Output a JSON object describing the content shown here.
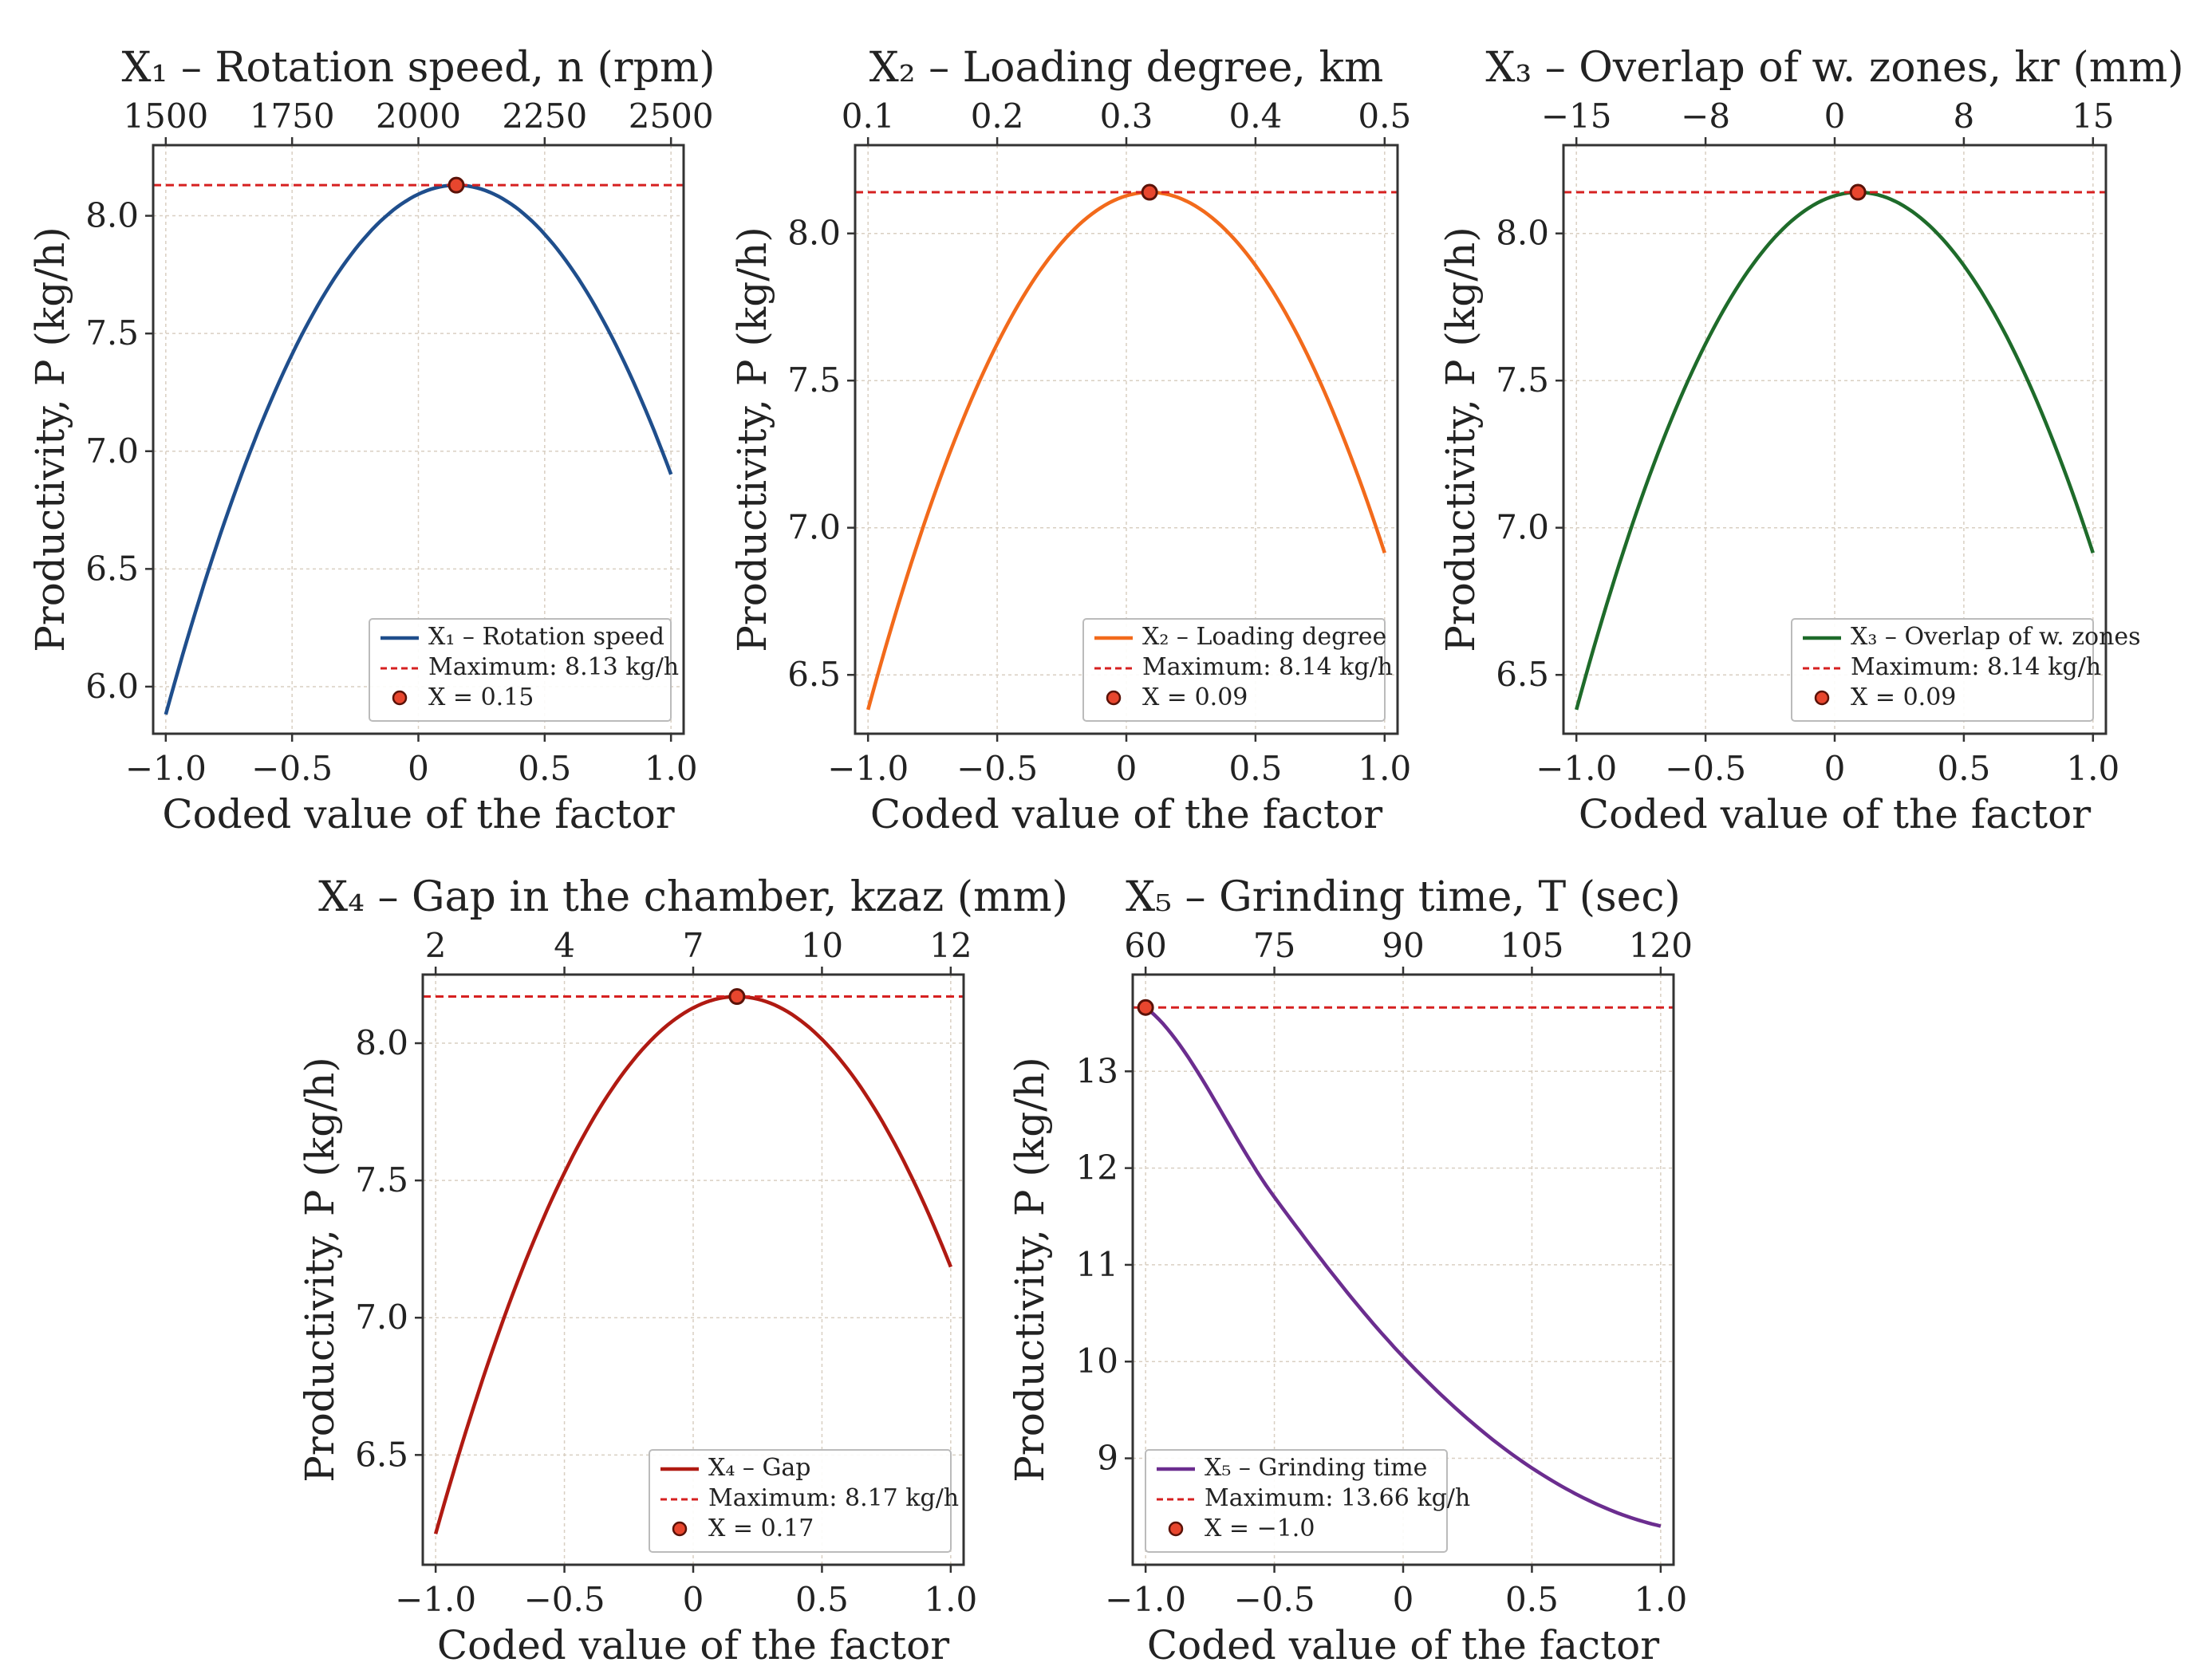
{
  "chart_data": [
    {
      "id": "x1",
      "type": "line",
      "title": "X₁ – Rotation speed, n (rpm)",
      "xlabel": "Coded value of the factor",
      "ylabel": "Productivity, P (kg/h)",
      "color": "#1f4e8c",
      "xlim": [
        -1.05,
        1.05
      ],
      "ylim": [
        5.8,
        8.3
      ],
      "x_ticks": [
        -1.0,
        -0.5,
        0,
        0.5,
        1.0
      ],
      "x_tick_labels": [
        "−1.0",
        "−0.5",
        "0",
        "0.5",
        "1.0"
      ],
      "y_ticks": [
        6.0,
        6.5,
        7.0,
        7.5,
        8.0
      ],
      "y_tick_labels": [
        "6.0",
        "6.5",
        "7.0",
        "7.5",
        "8.0"
      ],
      "top_ticks": [
        -1.0,
        -0.5,
        0,
        0.5,
        1.0
      ],
      "top_tick_labels": [
        "1500",
        "1750",
        "2000",
        "2250",
        "2500"
      ],
      "curve": {
        "x0": 0.15,
        "ymax": 8.13,
        "a": 1.7
      },
      "maximum_value": 8.13,
      "optimum_x": 0.15,
      "legend": {
        "series_label": "X₁ – Rotation speed",
        "maximum_label": "Maximum: 8.13 kg/h",
        "point_label": "X = 0.15"
      }
    },
    {
      "id": "x2",
      "type": "line",
      "title": "X₂ –  Loading degree, km",
      "xlabel": "Coded value of the factor",
      "ylabel": "Productivity, P (kg/h)",
      "color": "#f26a1b",
      "xlim": [
        -1.05,
        1.05
      ],
      "ylim": [
        6.3,
        8.3
      ],
      "x_ticks": [
        -1.0,
        -0.5,
        0,
        0.5,
        1.0
      ],
      "x_tick_labels": [
        "−1.0",
        "−0.5",
        "0",
        "0.5",
        "1.0"
      ],
      "y_ticks": [
        6.5,
        7.0,
        7.5,
        8.0
      ],
      "y_tick_labels": [
        "6.5",
        "7.0",
        "7.5",
        "8.0"
      ],
      "top_ticks": [
        -1.0,
        -0.5,
        0,
        0.5,
        1.0
      ],
      "top_tick_labels": [
        "0.1",
        "0.2",
        "0.3",
        "0.4",
        "0.5"
      ],
      "curve": {
        "x0": 0.09,
        "ymax": 8.14,
        "a": 1.48
      },
      "maximum_value": 8.14,
      "optimum_x": 0.09,
      "legend": {
        "series_label": "X₂ – Loading degree",
        "maximum_label": "Maximum: 8.14 kg/h",
        "point_label": "X = 0.09"
      }
    },
    {
      "id": "x3",
      "type": "line",
      "title": "X₃ – Overlap of w. zones, kr (mm)",
      "xlabel": "Coded value of the factor",
      "ylabel": "Productivity, P (kg/h)",
      "color": "#1e6b2a",
      "xlim": [
        -1.05,
        1.05
      ],
      "ylim": [
        6.3,
        8.3
      ],
      "x_ticks": [
        -1.0,
        -0.5,
        0,
        0.5,
        1.0
      ],
      "x_tick_labels": [
        "−1.0",
        "−0.5",
        "0",
        "0.5",
        "1.0"
      ],
      "y_ticks": [
        6.5,
        7.0,
        7.5,
        8.0
      ],
      "y_tick_labels": [
        "6.5",
        "7.0",
        "7.5",
        "8.0"
      ],
      "top_ticks": [
        -1.0,
        -0.5,
        0,
        0.5,
        1.0
      ],
      "top_tick_labels": [
        "−15",
        "−8",
        "0",
        "8",
        "15"
      ],
      "curve": {
        "x0": 0.09,
        "ymax": 8.14,
        "a": 1.48
      },
      "maximum_value": 8.14,
      "optimum_x": 0.09,
      "legend": {
        "series_label": "X₃ – Overlap of w. zones",
        "maximum_label": "Maximum: 8.14 kg/h",
        "point_label": "X = 0.09"
      }
    },
    {
      "id": "x4",
      "type": "line",
      "title": "X₄ – Gap in the chamber, kzaz (mm)",
      "xlabel": "Coded value of the factor",
      "ylabel": "Productivity, P (kg/h)",
      "color": "#b01a12",
      "xlim": [
        -1.05,
        1.05
      ],
      "ylim": [
        6.1,
        8.25
      ],
      "x_ticks": [
        -1.0,
        -0.5,
        0,
        0.5,
        1.0
      ],
      "x_tick_labels": [
        "−1.0",
        "−0.5",
        "0",
        "0.5",
        "1.0"
      ],
      "y_ticks": [
        6.5,
        7.0,
        7.5,
        8.0
      ],
      "y_tick_labels": [
        "6.5",
        "7.0",
        "7.5",
        "8.0"
      ],
      "top_ticks": [
        -1.0,
        -0.5,
        0,
        0.5,
        1.0
      ],
      "top_tick_labels": [
        "2",
        "4",
        "7",
        "10",
        "12"
      ],
      "curve": {
        "x0": 0.17,
        "ymax": 8.17,
        "a": 1.43
      },
      "maximum_value": 8.17,
      "optimum_x": 0.17,
      "legend": {
        "series_label": "X₄ – Gap",
        "maximum_label": "Maximum: 8.17 kg/h",
        "point_label": "X = 0.17"
      }
    },
    {
      "id": "x5",
      "type": "line",
      "title": "X₅ – Grinding time, T (sec)",
      "xlabel": "Coded value of the factor",
      "ylabel": "Productivity, P (kg/h)",
      "color": "#6b2d8f",
      "xlim": [
        -1.05,
        1.05
      ],
      "ylim": [
        7.9,
        14.0
      ],
      "x_ticks": [
        -1.0,
        -0.5,
        0,
        0.5,
        1.0
      ],
      "x_tick_labels": [
        "−1.0",
        "−0.5",
        "0",
        "0.5",
        "1.0"
      ],
      "y_ticks": [
        9,
        10,
        11,
        12,
        13
      ],
      "y_tick_labels": [
        "9",
        "10",
        "11",
        "12",
        "13"
      ],
      "top_ticks": [
        -1.0,
        -0.5,
        0,
        0.5,
        1.0
      ],
      "top_tick_labels": [
        "60",
        "75",
        "90",
        "105",
        "120"
      ],
      "curve_points": [
        [
          -1.0,
          13.66
        ],
        [
          -0.5,
          11.7
        ],
        [
          0,
          10.05
        ],
        [
          0.5,
          8.9
        ],
        [
          1.0,
          8.3
        ]
      ],
      "maximum_value": 13.66,
      "optimum_x": -1.0,
      "legend": {
        "series_label": "X₅ – Grinding time",
        "maximum_label": "Maximum: 13.66 kg/h",
        "point_label": "X = −1.0"
      }
    }
  ],
  "colors": {
    "max_line": "#d62020",
    "marker_fill": "#e8462e",
    "marker_edge": "#5a1208"
  }
}
